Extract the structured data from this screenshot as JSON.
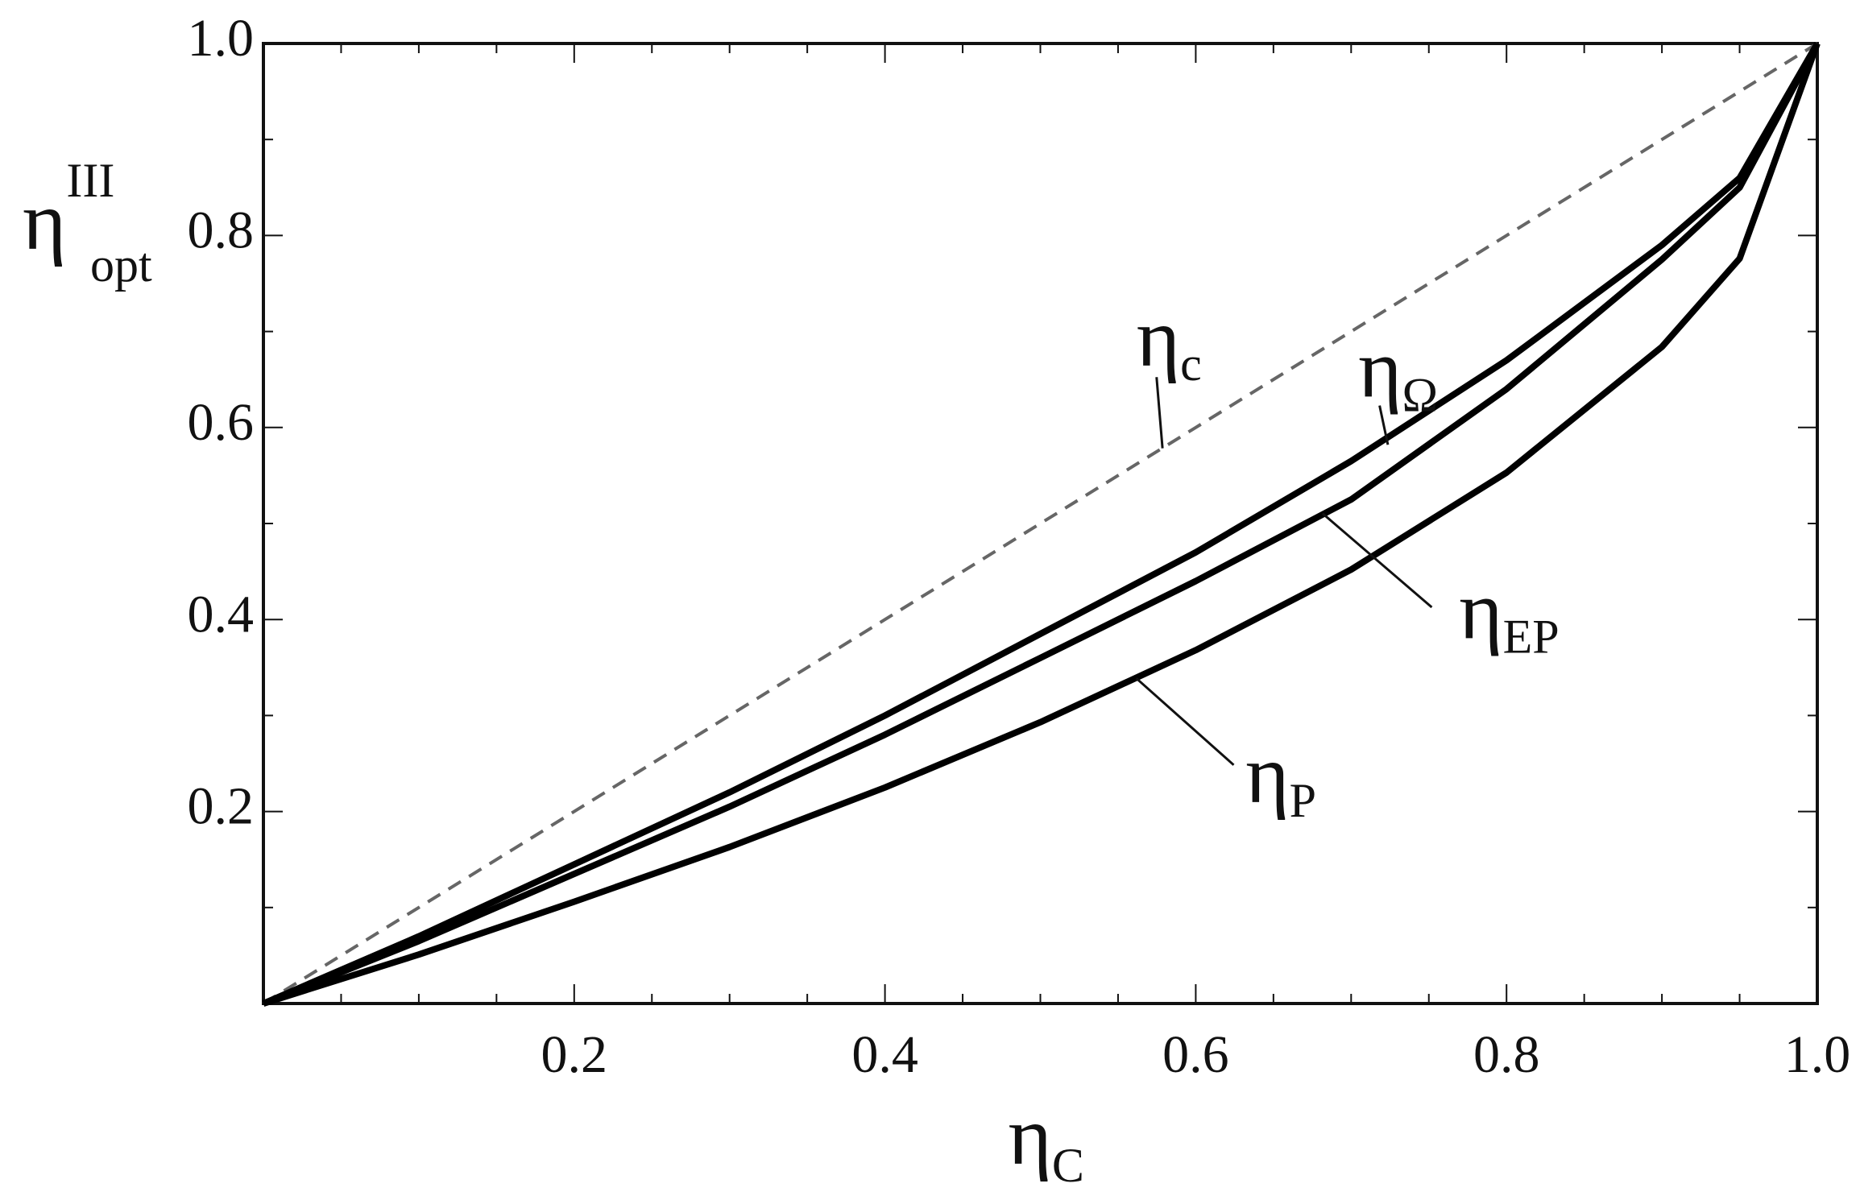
{
  "chart_data": {
    "type": "line",
    "x": [
      0,
      0.1,
      0.2,
      0.3,
      0.4,
      0.5,
      0.6,
      0.7,
      0.8,
      0.9,
      0.95,
      1.0
    ],
    "series": [
      {
        "color": "#666666",
        "dash": true,
        "values": [
          0,
          0.1,
          0.2,
          0.3,
          0.4,
          0.5,
          0.6,
          0.7,
          0.8,
          0.9,
          0.95,
          1.0
        ]
      },
      {
        "color": "#000000",
        "values": [
          0,
          0.07,
          0.145,
          0.22,
          0.3,
          0.385,
          0.47,
          0.565,
          0.67,
          0.79,
          0.86,
          1.0
        ]
      },
      {
        "color": "#000000",
        "values": [
          0,
          0.065,
          0.135,
          0.205,
          0.28,
          0.36,
          0.44,
          0.525,
          0.64,
          0.775,
          0.85,
          1.0
        ]
      },
      {
        "color": "#000000",
        "values": [
          0,
          0.051,
          0.106,
          0.163,
          0.225,
          0.293,
          0.368,
          0.452,
          0.553,
          0.684,
          0.776,
          1.0
        ]
      }
    ],
    "annotations": [
      {
        "text": "η",
        "subscript": "c"
      },
      {
        "text": "η",
        "subscript": "Ω"
      },
      {
        "text": "η",
        "subscript": "EP"
      },
      {
        "text": "η",
        "subscript": "P"
      }
    ],
    "xlabel": {
      "text": "η",
      "subscript": "C"
    },
    "ylabel": {
      "text": "η",
      "subscript": "opt",
      "superscript": "III"
    },
    "xlim": [
      0,
      1
    ],
    "ylim": [
      0,
      1
    ],
    "xticks": [
      0.2,
      0.4,
      0.6,
      0.8,
      {
        "value": 1,
        "label": "1.0"
      }
    ],
    "yticks": [
      0.2,
      0.4,
      0.6,
      0.8,
      {
        "value": 1,
        "label": "1.0"
      }
    ],
    "xticks_minor": [
      0.05,
      0.1,
      0.15,
      0.25,
      0.3,
      0.35,
      0.45,
      0.5,
      0.55,
      0.65,
      0.7,
      0.75,
      0.85,
      0.9,
      0.95
    ],
    "yticks_minor": [
      0.1,
      0.3,
      0.5,
      0.7,
      0.9
    ]
  }
}
